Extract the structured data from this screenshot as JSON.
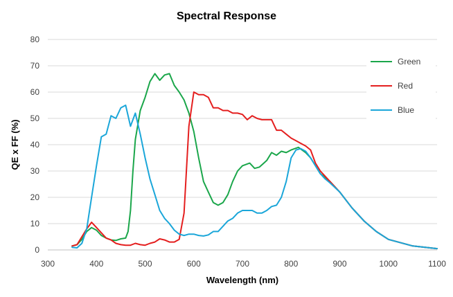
{
  "chart_data": {
    "type": "line",
    "title": "Spectral Response",
    "xlabel": "Wavelength (nm)",
    "ylabel": "QE x FF (%)",
    "xlim": [
      300,
      1100
    ],
    "ylim": [
      0,
      80
    ],
    "xticks": [
      300,
      400,
      500,
      600,
      700,
      800,
      900,
      1000,
      1100
    ],
    "yticks": [
      0,
      10,
      20,
      30,
      40,
      50,
      60,
      70,
      80
    ],
    "grid": "horizontal",
    "legend_position": "right",
    "series": [
      {
        "name": "Green",
        "color": "#1aa64a",
        "points": [
          [
            350,
            1.5
          ],
          [
            360,
            2
          ],
          [
            370,
            4
          ],
          [
            380,
            7
          ],
          [
            390,
            8.5
          ],
          [
            400,
            7.5
          ],
          [
            410,
            5.5
          ],
          [
            420,
            4.5
          ],
          [
            430,
            3.8
          ],
          [
            440,
            3.6
          ],
          [
            450,
            4.2
          ],
          [
            460,
            4.5
          ],
          [
            465,
            7
          ],
          [
            470,
            15
          ],
          [
            475,
            30
          ],
          [
            480,
            42
          ],
          [
            490,
            53
          ],
          [
            500,
            58
          ],
          [
            510,
            64
          ],
          [
            520,
            67
          ],
          [
            530,
            64.5
          ],
          [
            540,
            66.5
          ],
          [
            550,
            67
          ],
          [
            560,
            62.5
          ],
          [
            570,
            60
          ],
          [
            580,
            57
          ],
          [
            590,
            52
          ],
          [
            600,
            45
          ],
          [
            610,
            35
          ],
          [
            620,
            26
          ],
          [
            630,
            22
          ],
          [
            640,
            18
          ],
          [
            650,
            17
          ],
          [
            660,
            18
          ],
          [
            670,
            21
          ],
          [
            680,
            26
          ],
          [
            690,
            30
          ],
          [
            700,
            32
          ],
          [
            715,
            33
          ],
          [
            725,
            31
          ],
          [
            735,
            31.5
          ],
          [
            750,
            34
          ],
          [
            760,
            37
          ],
          [
            770,
            36
          ],
          [
            780,
            37.5
          ],
          [
            790,
            37
          ],
          [
            800,
            38
          ],
          [
            815,
            39
          ],
          [
            830,
            37
          ],
          [
            840,
            35
          ],
          [
            850,
            32
          ],
          [
            860,
            29
          ],
          [
            880,
            26
          ],
          [
            900,
            22
          ],
          [
            925,
            16
          ],
          [
            950,
            11
          ],
          [
            975,
            7
          ],
          [
            1000,
            4
          ],
          [
            1050,
            1.5
          ],
          [
            1100,
            0.5
          ]
        ]
      },
      {
        "name": "Red",
        "color": "#e41e1e",
        "points": [
          [
            350,
            1.5
          ],
          [
            360,
            2
          ],
          [
            370,
            5
          ],
          [
            380,
            8
          ],
          [
            390,
            10.5
          ],
          [
            400,
            8.5
          ],
          [
            410,
            6.5
          ],
          [
            420,
            4.5
          ],
          [
            430,
            3.8
          ],
          [
            440,
            2.5
          ],
          [
            450,
            2
          ],
          [
            460,
            1.8
          ],
          [
            470,
            1.8
          ],
          [
            480,
            2.5
          ],
          [
            490,
            2
          ],
          [
            500,
            1.8
          ],
          [
            510,
            2.5
          ],
          [
            520,
            3
          ],
          [
            530,
            4.2
          ],
          [
            540,
            3.8
          ],
          [
            550,
            3
          ],
          [
            560,
            3
          ],
          [
            570,
            4
          ],
          [
            580,
            14
          ],
          [
            590,
            47
          ],
          [
            600,
            60
          ],
          [
            610,
            59
          ],
          [
            620,
            59
          ],
          [
            630,
            58
          ],
          [
            640,
            54
          ],
          [
            650,
            54
          ],
          [
            660,
            53
          ],
          [
            670,
            53
          ],
          [
            680,
            52
          ],
          [
            690,
            52
          ],
          [
            700,
            51.5
          ],
          [
            710,
            49.5
          ],
          [
            720,
            51
          ],
          [
            730,
            50
          ],
          [
            740,
            49.5
          ],
          [
            750,
            49.5
          ],
          [
            760,
            49.5
          ],
          [
            770,
            45.5
          ],
          [
            780,
            45.5
          ],
          [
            790,
            44
          ],
          [
            800,
            42.5
          ],
          [
            810,
            41.5
          ],
          [
            820,
            40.5
          ],
          [
            830,
            39.5
          ],
          [
            840,
            38
          ],
          [
            850,
            33
          ],
          [
            860,
            30
          ],
          [
            870,
            28
          ],
          [
            880,
            26
          ],
          [
            900,
            22
          ],
          [
            925,
            16
          ],
          [
            950,
            11
          ],
          [
            975,
            7
          ],
          [
            1000,
            4
          ],
          [
            1050,
            1.5
          ],
          [
            1100,
            0.5
          ]
        ]
      },
      {
        "name": "Blue",
        "color": "#1aa6d9",
        "points": [
          [
            350,
            1
          ],
          [
            360,
            0.8
          ],
          [
            370,
            2.5
          ],
          [
            380,
            8
          ],
          [
            390,
            20
          ],
          [
            400,
            32
          ],
          [
            410,
            43
          ],
          [
            420,
            44
          ],
          [
            430,
            51
          ],
          [
            440,
            50
          ],
          [
            450,
            54
          ],
          [
            460,
            55
          ],
          [
            470,
            47
          ],
          [
            480,
            52
          ],
          [
            490,
            44
          ],
          [
            500,
            35
          ],
          [
            510,
            27
          ],
          [
            520,
            21
          ],
          [
            530,
            15
          ],
          [
            540,
            12
          ],
          [
            550,
            10
          ],
          [
            560,
            7.5
          ],
          [
            570,
            6
          ],
          [
            580,
            5.5
          ],
          [
            590,
            6
          ],
          [
            600,
            6
          ],
          [
            610,
            5.5
          ],
          [
            620,
            5.3
          ],
          [
            630,
            5.7
          ],
          [
            640,
            7
          ],
          [
            650,
            7
          ],
          [
            660,
            9
          ],
          [
            670,
            11
          ],
          [
            680,
            12
          ],
          [
            690,
            14
          ],
          [
            700,
            15
          ],
          [
            710,
            15
          ],
          [
            720,
            15
          ],
          [
            730,
            14
          ],
          [
            740,
            14
          ],
          [
            750,
            15
          ],
          [
            760,
            16.5
          ],
          [
            770,
            17
          ],
          [
            780,
            20
          ],
          [
            790,
            26
          ],
          [
            800,
            35
          ],
          [
            810,
            38
          ],
          [
            820,
            38.5
          ],
          [
            830,
            37.5
          ],
          [
            840,
            35
          ],
          [
            850,
            32
          ],
          [
            860,
            29
          ],
          [
            870,
            27
          ],
          [
            880,
            25.5
          ],
          [
            900,
            22
          ],
          [
            925,
            16
          ],
          [
            950,
            11
          ],
          [
            975,
            7
          ],
          [
            1000,
            4
          ],
          [
            1050,
            1.5
          ],
          [
            1100,
            0.5
          ]
        ]
      }
    ]
  }
}
